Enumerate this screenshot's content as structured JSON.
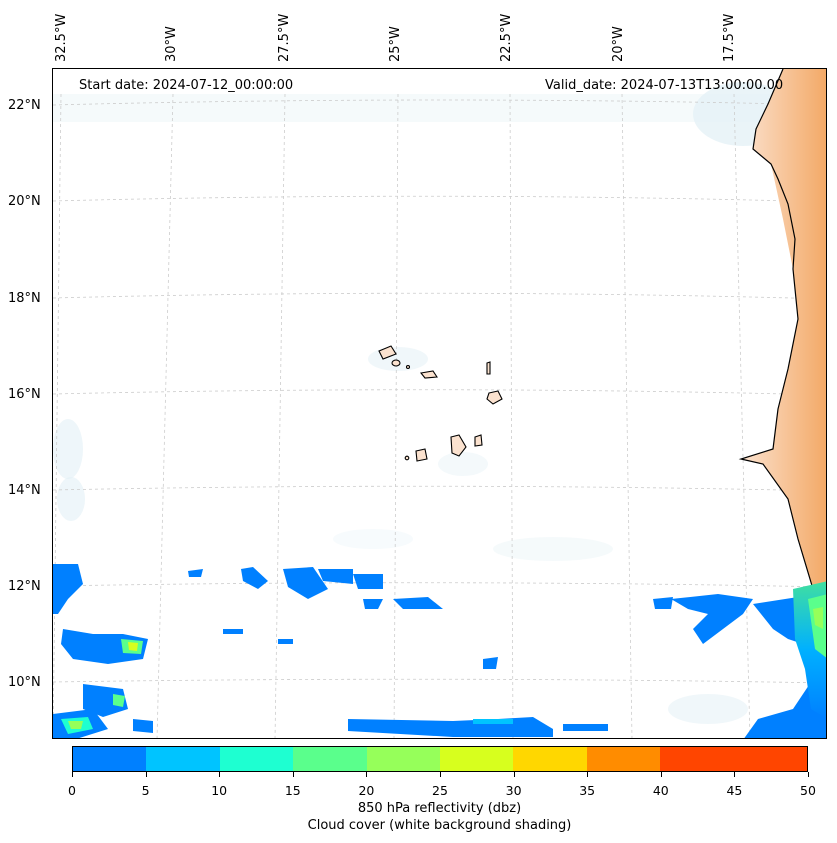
{
  "start_date": "Start date: 2024-07-12_00:00:00",
  "valid_date": "Valid_date: 2024-07-13T13:00:00.00",
  "longitude_labels": [
    "32.5°W",
    "30°W",
    "27.5°W",
    "25°W",
    "22.5°W",
    "20°W",
    "17.5°W"
  ],
  "latitude_labels": [
    "22°N",
    "20°N",
    "18°N",
    "16°N",
    "14°N",
    "12°N",
    "10°N"
  ],
  "colorbar": {
    "ticks": [
      "0",
      "5",
      "10",
      "15",
      "20",
      "25",
      "30",
      "35",
      "40",
      "45",
      "50"
    ],
    "colors": [
      "#0080ff",
      "#00c4ff",
      "#1effd1",
      "#5aff8c",
      "#96ff5a",
      "#d7ff1e",
      "#ffd700",
      "#ff8c00",
      "#ff4500",
      "#ff4500"
    ],
    "title_line1": "850 hPa reflectivity (dbz)",
    "title_line2": "Cloud cover (white background shading)"
  },
  "colors": {
    "land_warm": "#f4a460",
    "cloud_shade": "#d6eaf2",
    "coastline": "#000000",
    "gridline": "#cccccc"
  }
}
